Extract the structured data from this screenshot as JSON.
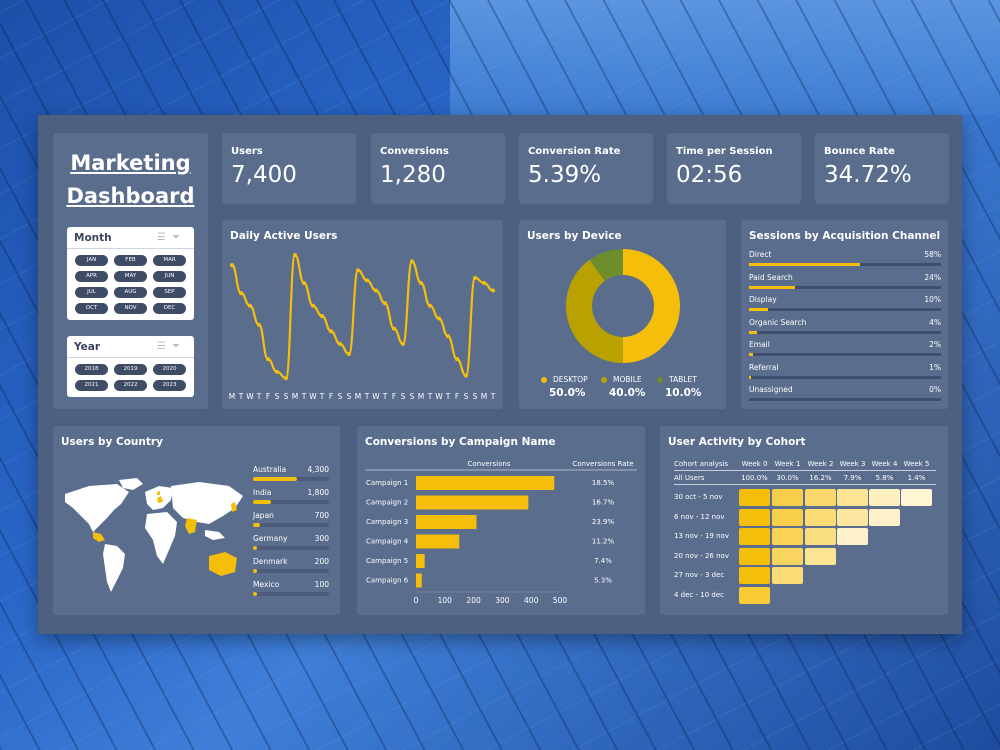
{
  "title_line1": "Marketing",
  "title_line2": "Dashboard",
  "month_slicer": {
    "label": "Month",
    "options": [
      "JAN",
      "FEB",
      "MAR",
      "APR",
      "MAY",
      "JUN",
      "JUL",
      "AUG",
      "SEP",
      "OCT",
      "NOV",
      "DEC"
    ]
  },
  "year_slicer": {
    "label": "Year",
    "options": [
      "2018",
      "2019",
      "2020",
      "2021",
      "2022",
      "2023"
    ]
  },
  "slicer_icons": [
    "list-icon",
    "filter-clear-icon"
  ],
  "kpis": [
    {
      "label": "Users",
      "value": "7,400"
    },
    {
      "label": "Conversions",
      "value": "1,280"
    },
    {
      "label": "Conversion Rate",
      "value": "5.39%"
    },
    {
      "label": "Time per Session",
      "value": "02:56"
    },
    {
      "label": "Bounce Rate",
      "value": "34.72%"
    }
  ],
  "daily_active": {
    "title": "Daily Active Users",
    "days": [
      "M",
      "T",
      "W",
      "T",
      "F",
      "S",
      "S",
      "M",
      "T",
      "W",
      "T",
      "F",
      "S",
      "S",
      "M",
      "T",
      "W",
      "T",
      "F",
      "S",
      "S",
      "M",
      "T",
      "W",
      "T",
      "F",
      "S",
      "S",
      "M",
      "T"
    ],
    "values": [
      92,
      70,
      60,
      45,
      18,
      8,
      3,
      100,
      78,
      60,
      52,
      40,
      30,
      22,
      88,
      80,
      72,
      62,
      42,
      30,
      95,
      78,
      60,
      50,
      36,
      18,
      5,
      82,
      78,
      72
    ]
  },
  "device": {
    "title": "Users by Device",
    "items": [
      {
        "name": "DESKTOP",
        "pct": "50.0%",
        "value": 50.0,
        "color": "#f5be0b"
      },
      {
        "name": "MOBILE",
        "pct": "40.0%",
        "value": 40.0,
        "color": "#b9a200"
      },
      {
        "name": "TABLET",
        "pct": "10.0%",
        "value": 10.0,
        "color": "#6e8d2c"
      }
    ]
  },
  "channels": {
    "title": "Sessions by Acquisition Channel",
    "items": [
      {
        "name": "Direct",
        "pct": "58%",
        "value": 58
      },
      {
        "name": "Paid Search",
        "pct": "24%",
        "value": 24
      },
      {
        "name": "Display",
        "pct": "10%",
        "value": 10
      },
      {
        "name": "Organic Search",
        "pct": "4%",
        "value": 4
      },
      {
        "name": "Email",
        "pct": "2%",
        "value": 2
      },
      {
        "name": "Referral",
        "pct": "1%",
        "value": 1
      },
      {
        "name": "Unassigned",
        "pct": "0%",
        "value": 0
      }
    ]
  },
  "country": {
    "title": "Users by Country",
    "max": 4300,
    "items": [
      {
        "name": "Australia",
        "label": "4,300",
        "value": 4300
      },
      {
        "name": "India",
        "label": "1,800",
        "value": 1800
      },
      {
        "name": "Japan",
        "label": "700",
        "value": 700
      },
      {
        "name": "Germany",
        "label": "300",
        "value": 300
      },
      {
        "name": "Denmark",
        "label": "200",
        "value": 200
      },
      {
        "name": "Mexico",
        "label": "100",
        "value": 100
      }
    ]
  },
  "campaigns": {
    "title": "Conversions by Campaign Name",
    "col_conversions": "Conversions",
    "col_rate": "Conversions Rate",
    "axis_ticks": [
      "0",
      "100",
      "200",
      "300",
      "400",
      "500"
    ],
    "axis_max": 500,
    "items": [
      {
        "name": "Campaign 1",
        "value": 480,
        "rate": "18.5%"
      },
      {
        "name": "Campaign 2",
        "value": 390,
        "rate": "16.7%"
      },
      {
        "name": "Campaign 3",
        "value": 210,
        "rate": "23.9%"
      },
      {
        "name": "Campaign 4",
        "value": 150,
        "rate": "11.2%"
      },
      {
        "name": "Campaign 5",
        "value": 30,
        "rate": "7.4%"
      },
      {
        "name": "Campaign 6",
        "value": 20,
        "rate": "5.3%"
      }
    ]
  },
  "cohort": {
    "title": "User Activity by Cohort",
    "header_label": "Cohort analysis",
    "weeks": [
      "Week 0",
      "Week 1",
      "Week 2",
      "Week 3",
      "Week 4",
      "Week 5"
    ],
    "all_users_label": "All Users",
    "all_users": [
      "100.0%",
      "30.0%",
      "16.2%",
      "7.9%",
      "5.8%",
      "1.4%"
    ],
    "rows": [
      {
        "label": "30 oct - 5 nov",
        "levels": [
          1.0,
          0.7,
          0.55,
          0.35,
          0.15,
          0.05
        ]
      },
      {
        "label": "6 nov - 12 nov",
        "levels": [
          1.0,
          0.7,
          0.5,
          0.3,
          0.1
        ]
      },
      {
        "label": "13 nov - 19 nov",
        "levels": [
          1.0,
          0.65,
          0.45,
          0.1
        ]
      },
      {
        "label": "20 nov - 26 nov",
        "levels": [
          1.0,
          0.6,
          0.35
        ]
      },
      {
        "label": "27 nov - 3 dec",
        "levels": [
          1.0,
          0.5
        ]
      },
      {
        "label": "4 dec - 10 dec",
        "levels": [
          0.8
        ]
      }
    ]
  },
  "accent": "#f5be0b"
}
